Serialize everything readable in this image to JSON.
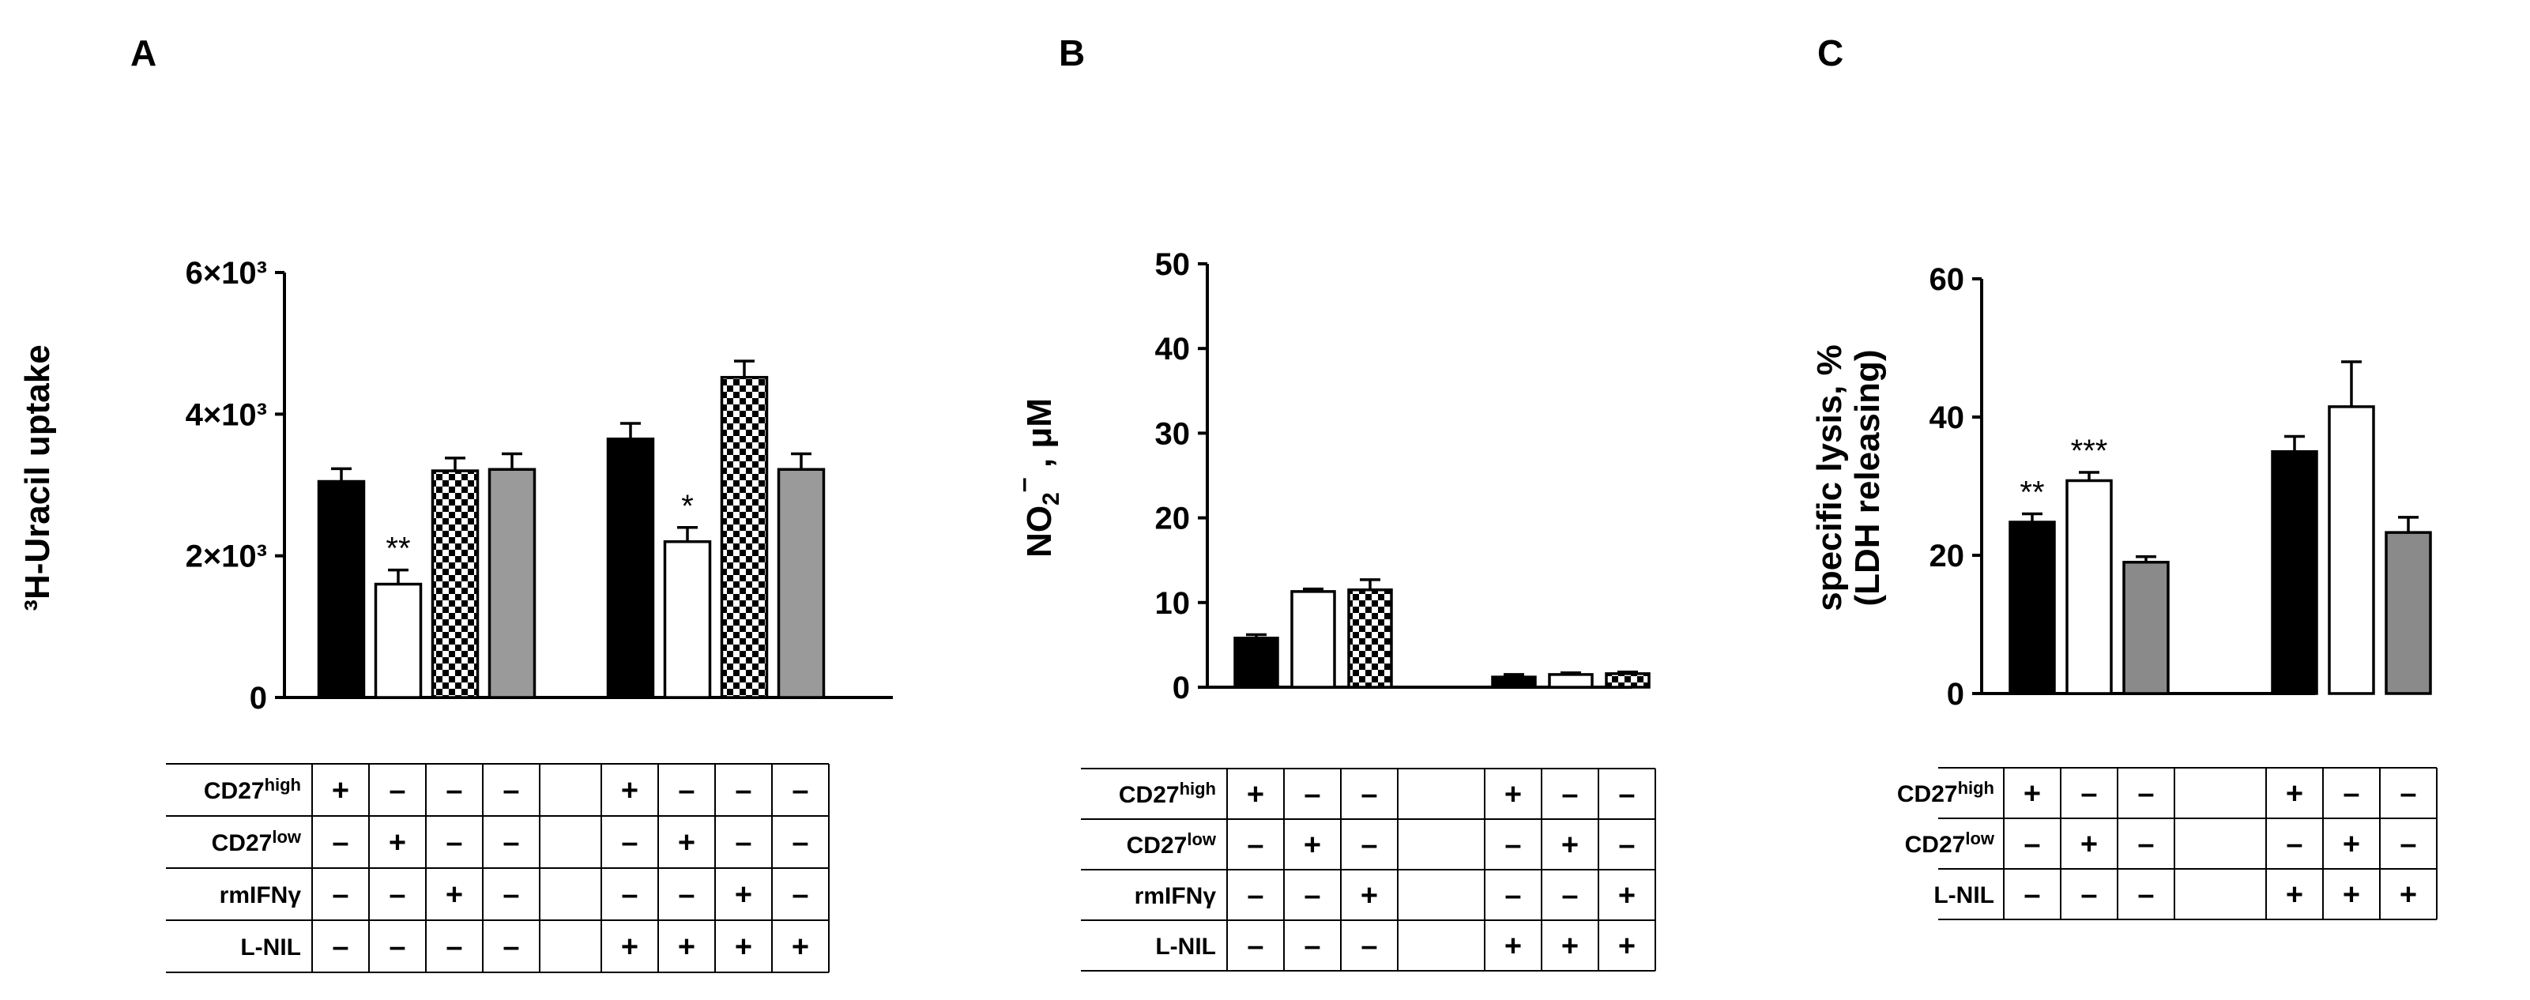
{
  "panels": [
    {
      "letter": "A"
    },
    {
      "letter": "B"
    },
    {
      "letter": "C"
    }
  ],
  "chart_data": [
    {
      "type": "bar",
      "panel": "A",
      "ylabel": "³H-Uracil uptake",
      "ylim": [
        0,
        6000
      ],
      "yticks": [
        {
          "value": 0,
          "label": "0"
        },
        {
          "value": 2000,
          "label": "2×10³"
        },
        {
          "value": 4000,
          "label": "4×10³"
        },
        {
          "value": 6000,
          "label": "6×10³"
        }
      ],
      "bars": [
        {
          "value": 3050,
          "error": 180,
          "fill": "black"
        },
        {
          "value": 1600,
          "error": 200,
          "fill": "white",
          "annotation": "**"
        },
        {
          "value": 3200,
          "error": 180,
          "fill": "checker"
        },
        {
          "value": 3220,
          "error": 220,
          "fill": "gray"
        },
        {
          "value": 3650,
          "error": 220,
          "fill": "black"
        },
        {
          "value": 2200,
          "error": 200,
          "fill": "white",
          "annotation": "*"
        },
        {
          "value": 4520,
          "error": 230,
          "fill": "checker"
        },
        {
          "value": 3220,
          "error": 220,
          "fill": "gray"
        }
      ],
      "gap_after": 4,
      "table": {
        "rows": [
          {
            "label": "CD27high",
            "label_main": "CD27",
            "label_sup": "high",
            "signs": [
              "+",
              "–",
              "–",
              "–",
              "",
              "+",
              "–",
              "–",
              "–"
            ]
          },
          {
            "label": "CD27low",
            "label_main": "CD27",
            "label_sup": "low",
            "signs": [
              "–",
              "+",
              "–",
              "–",
              "",
              "–",
              "+",
              "–",
              "–"
            ]
          },
          {
            "label": "rmIFNγ",
            "label_main": "rmIFNγ",
            "label_sup": "",
            "signs": [
              "–",
              "–",
              "+",
              "–",
              "",
              "–",
              "–",
              "+",
              "–"
            ]
          },
          {
            "label": "L-NIL",
            "label_main": "L-NIL",
            "label_sup": "",
            "signs": [
              "–",
              "–",
              "–",
              "–",
              "",
              "+",
              "+",
              "+",
              "+"
            ]
          }
        ]
      }
    },
    {
      "type": "bar",
      "panel": "B",
      "ylabel_main": "NO",
      "ylabel_sub": "2",
      "ylabel_sup": "–",
      "ylabel_rest": " , μM",
      "ylim": [
        0,
        50
      ],
      "yticks": [
        {
          "value": 0,
          "label": "0"
        },
        {
          "value": 10,
          "label": "10"
        },
        {
          "value": 20,
          "label": "20"
        },
        {
          "value": 30,
          "label": "30"
        },
        {
          "value": 40,
          "label": "40"
        },
        {
          "value": 50,
          "label": "50"
        }
      ],
      "bars": [
        {
          "value": 5.8,
          "error": 0.4,
          "fill": "black"
        },
        {
          "value": 11.3,
          "error": 0.3,
          "fill": "white"
        },
        {
          "value": 11.5,
          "error": 1.2,
          "fill": "checker"
        },
        {
          "value": 1.2,
          "error": 0.3,
          "fill": "black"
        },
        {
          "value": 1.5,
          "error": 0.2,
          "fill": "white"
        },
        {
          "value": 1.6,
          "error": 0.2,
          "fill": "checker"
        }
      ],
      "gap_after": 3,
      "table": {
        "rows": [
          {
            "label": "CD27high",
            "label_main": "CD27",
            "label_sup": "high",
            "signs": [
              "+",
              "–",
              "–",
              "",
              "+",
              "–",
              "–"
            ]
          },
          {
            "label": "CD27low",
            "label_main": "CD27",
            "label_sup": "low",
            "signs": [
              "–",
              "+",
              "–",
              "",
              "–",
              "+",
              "–"
            ]
          },
          {
            "label": "rmIFNγ",
            "label_main": "rmIFNγ",
            "label_sup": "",
            "signs": [
              "–",
              "–",
              "+",
              "",
              "–",
              "–",
              "+"
            ]
          },
          {
            "label": "L-NIL",
            "label_main": "L-NIL",
            "label_sup": "",
            "signs": [
              "–",
              "–",
              "–",
              "",
              "+",
              "+",
              "+"
            ]
          }
        ]
      }
    },
    {
      "type": "bar",
      "panel": "C",
      "ylabel_line1": "specific lysis, %",
      "ylabel_line2": "(LDH releasing)",
      "ylim": [
        0,
        60
      ],
      "yticks": [
        {
          "value": 0,
          "label": "0"
        },
        {
          "value": 20,
          "label": "20"
        },
        {
          "value": 40,
          "label": "40"
        },
        {
          "value": 60,
          "label": "60"
        }
      ],
      "bars": [
        {
          "value": 24.8,
          "error": 1.2,
          "fill": "black",
          "annotation": "**"
        },
        {
          "value": 30.8,
          "error": 1.2,
          "fill": "white",
          "annotation": "***"
        },
        {
          "value": 19.0,
          "error": 0.8,
          "fill": "gray"
        },
        {
          "value": 35.0,
          "error": 2.2,
          "fill": "black"
        },
        {
          "value": 41.5,
          "error": 6.5,
          "fill": "white"
        },
        {
          "value": 23.3,
          "error": 2.2,
          "fill": "gray"
        }
      ],
      "gap_after": 3,
      "table": {
        "rows": [
          {
            "label": "CD27high",
            "label_main": "CD27",
            "label_sup": "high",
            "signs": [
              "+",
              "–",
              "–",
              "",
              "+",
              "–",
              "–"
            ]
          },
          {
            "label": "CD27low",
            "label_main": "CD27",
            "label_sup": "low",
            "signs": [
              "–",
              "+",
              "–",
              "",
              "–",
              "+",
              "–"
            ]
          },
          {
            "label": "L-NIL",
            "label_main": "L-NIL",
            "label_sup": "",
            "signs": [
              "–",
              "–",
              "–",
              "",
              "+",
              "+",
              "+"
            ]
          }
        ]
      }
    }
  ],
  "colors": {
    "black_bar": "#000000",
    "white_bar": "#ffffff",
    "gray_bar_A": "#9a9a9a",
    "gray_bar_C": "#8a8a8a",
    "axis": "#000000",
    "table_line": "#000000"
  }
}
